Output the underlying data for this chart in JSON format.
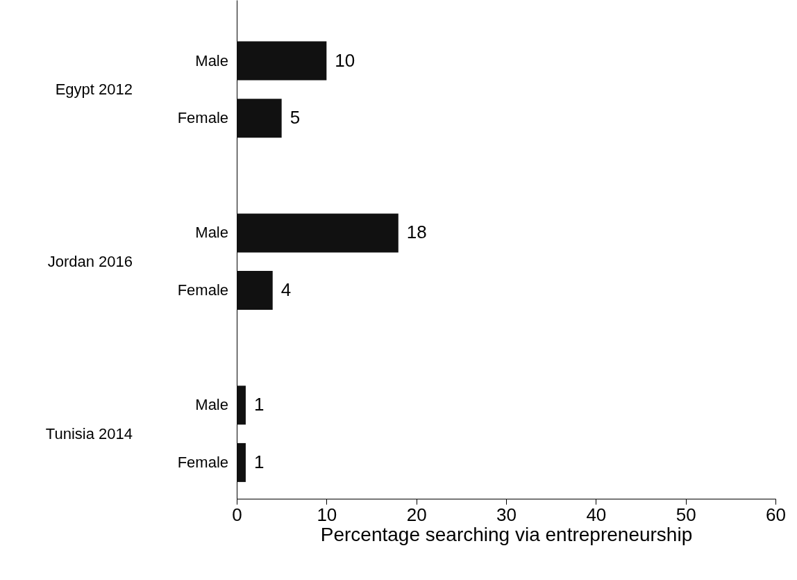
{
  "chart_data": {
    "type": "bar",
    "orientation": "horizontal",
    "xlabel": "Percentage searching via entrepreneurship",
    "categories": [
      "Male",
      "Female",
      "Male",
      "Female",
      "Male",
      "Female"
    ],
    "values": [
      10,
      5,
      18,
      4,
      1,
      1
    ],
    "color": "#111111",
    "data_labels": true,
    "xlim": [
      0,
      60
    ],
    "xticks": [
      0,
      10,
      20,
      30,
      40,
      50,
      60
    ],
    "annotations": [
      "Egypt 2012",
      "Jordan 2016",
      "Tunisia 2014"
    ]
  }
}
